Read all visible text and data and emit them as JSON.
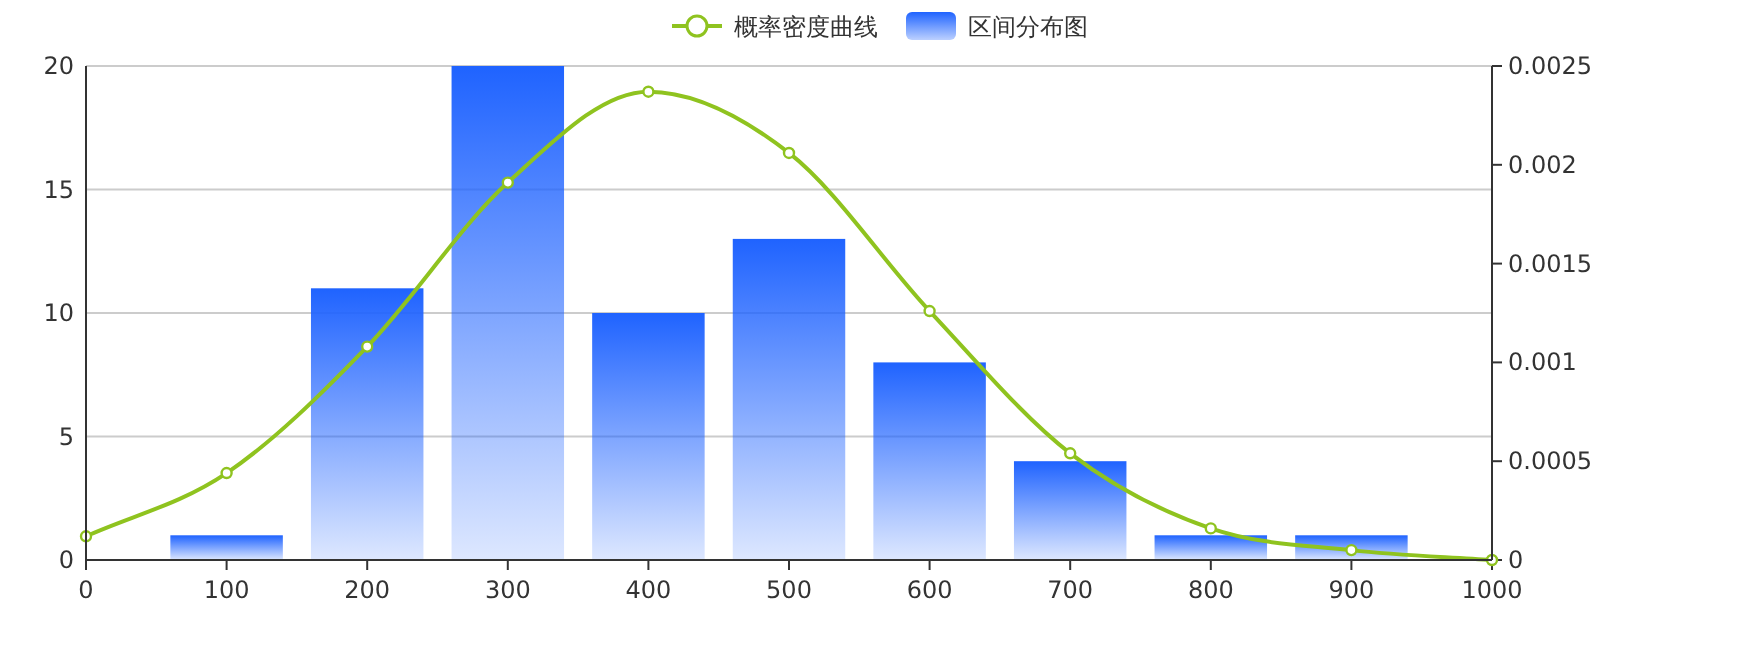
{
  "chart_data": {
    "type": "bar",
    "xlim": [
      0,
      1000
    ],
    "xticks": [
      0,
      100,
      200,
      300,
      400,
      500,
      600,
      700,
      800,
      900,
      1000
    ],
    "ylim": [
      0,
      20
    ],
    "yticks": [
      0,
      5,
      10,
      15,
      20
    ],
    "y2lim": [
      0,
      0.0025
    ],
    "y2ticks": [
      0,
      0.0005,
      0.001,
      0.0015,
      0.002,
      0.0025
    ],
    "grid": "y",
    "legend": "top",
    "series": [
      {
        "name": "概率密度曲线",
        "type": "line",
        "axis": "y2",
        "color": "#8fc31f",
        "marker": "circle",
        "x": [
          0,
          100,
          200,
          300,
          400,
          500,
          600,
          700,
          800,
          900,
          1000
        ],
        "values": [
          0.00012,
          0.00044,
          0.00108,
          0.00191,
          0.00237,
          0.00206,
          0.00126,
          0.00054,
          0.00016,
          5e-05,
          0
        ]
      },
      {
        "name": "区间分布图",
        "color": "#1f63ff",
        "x": [
          100,
          200,
          300,
          400,
          500,
          600,
          700,
          800,
          900
        ],
        "values": [
          1,
          11,
          20,
          10,
          13,
          8,
          4,
          1,
          1
        ]
      }
    ]
  }
}
